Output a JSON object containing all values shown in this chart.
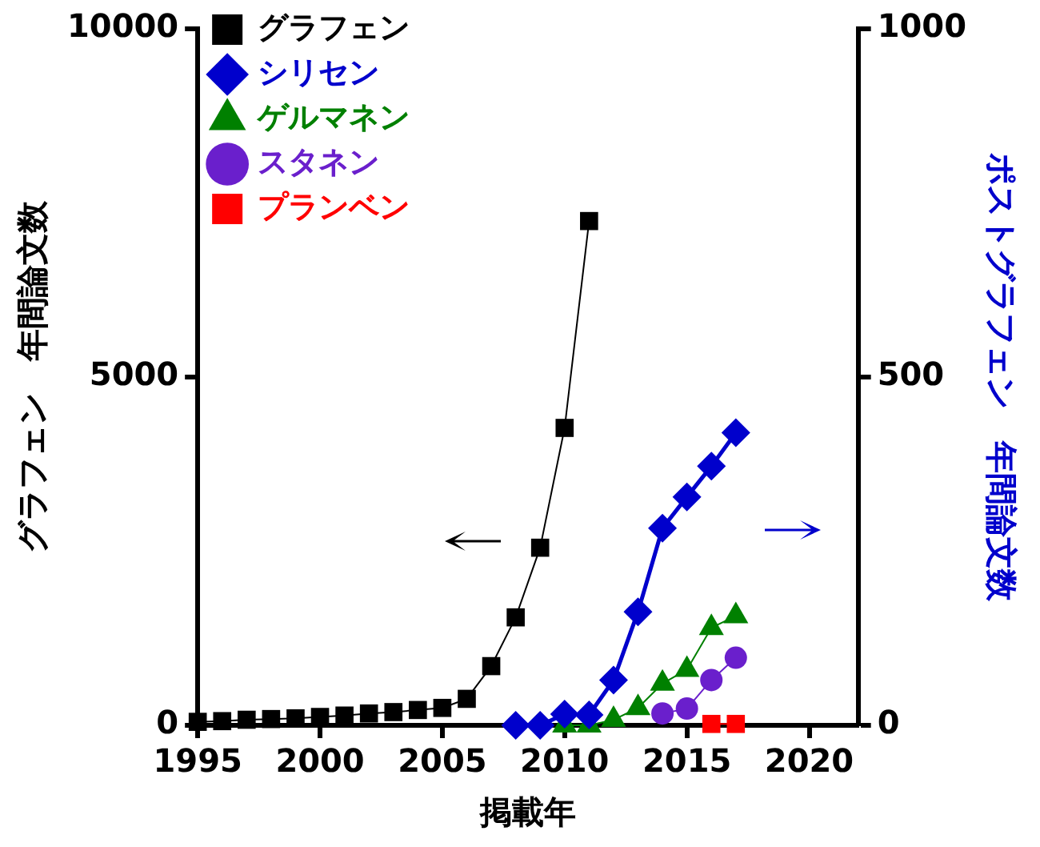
{
  "chart_data": {
    "type": "line",
    "xlabel": "掲載年",
    "ylabel": "グラフェン　年間論文数",
    "y2label": "ポストグラフェン　年間論文数",
    "xlim": [
      1995,
      2022
    ],
    "xticks": [
      1995,
      2000,
      2005,
      2010,
      2015,
      2020
    ],
    "ylim": [
      0,
      10000
    ],
    "yticks": [
      0,
      5000,
      10000
    ],
    "y2lim": [
      0,
      1000
    ],
    "y2ticks": [
      0,
      500,
      1000
    ],
    "grid": false,
    "legend": "top left",
    "series": [
      {
        "name": "グラフェン",
        "color": "#000000",
        "marker": "square",
        "axis": "y",
        "x": [
          1995,
          1996,
          1997,
          1998,
          1999,
          2000,
          2001,
          2002,
          2003,
          2004,
          2005,
          2006,
          2007,
          2008,
          2009,
          2010,
          2011
        ],
        "values": [
          50,
          60,
          80,
          90,
          100,
          120,
          140,
          170,
          190,
          220,
          250,
          380,
          850,
          1550,
          2550,
          4270,
          7240
        ]
      },
      {
        "name": "シリセン",
        "color": "#0000cc",
        "marker": "diamond",
        "axis": "y2",
        "x": [
          2008,
          2009,
          2010,
          2011,
          2012,
          2013,
          2014,
          2015,
          2016,
          2017
        ],
        "values": [
          0,
          0,
          16,
          15,
          65,
          163,
          283,
          328,
          372,
          420
        ]
      },
      {
        "name": "ゲルマネン",
        "color": "#008000",
        "marker": "triangle",
        "axis": "y2",
        "x": [
          2010,
          2011,
          2012,
          2013,
          2014,
          2015,
          2016,
          2017
        ],
        "values": [
          0,
          0,
          8,
          25,
          60,
          80,
          140,
          157
        ]
      },
      {
        "name": "スタネン",
        "color": "#6a1fcc",
        "marker": "circle",
        "axis": "y2",
        "x": [
          2014,
          2015,
          2016,
          2017
        ],
        "values": [
          17,
          24,
          65,
          97
        ]
      },
      {
        "name": "プランベン",
        "color": "#ff0000",
        "marker": "square",
        "axis": "y2",
        "x": [
          2016,
          2017
        ],
        "values": [
          2,
          2
        ]
      }
    ]
  }
}
